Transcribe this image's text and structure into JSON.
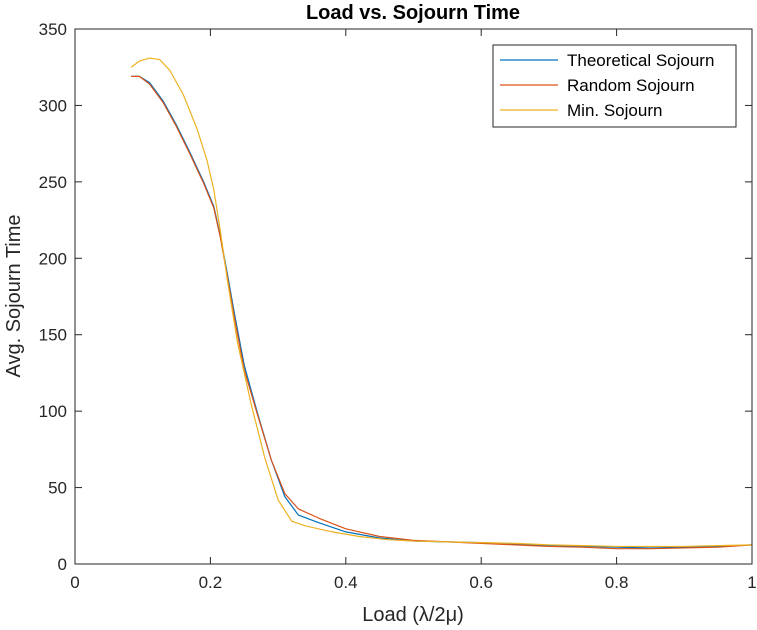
{
  "chart_data": {
    "type": "line",
    "title": "Load vs. Sojourn Time",
    "xlabel": "Load (λ/2μ)",
    "ylabel": "Avg. Sojourn Time",
    "xlim": [
      0,
      1
    ],
    "ylim": [
      0,
      350
    ],
    "xticks": [
      0,
      0.2,
      0.4,
      0.6,
      0.8,
      1
    ],
    "xtick_labels": [
      "0",
      "0.2",
      "0.4",
      "0.6",
      "0.8",
      "1"
    ],
    "yticks": [
      0,
      50,
      100,
      150,
      200,
      250,
      300,
      350
    ],
    "ytick_labels": [
      "0",
      "50",
      "100",
      "150",
      "200",
      "250",
      "300",
      "350"
    ],
    "grid": false,
    "legend_position": "top-right",
    "series": [
      {
        "name": "Theoretical Sojourn",
        "color": "#0072BD",
        "x": [
          0.083,
          0.095,
          0.11,
          0.13,
          0.15,
          0.17,
          0.19,
          0.205,
          0.215,
          0.225,
          0.235,
          0.25,
          0.27,
          0.29,
          0.31,
          0.33,
          0.36,
          0.4,
          0.45,
          0.5,
          0.55,
          0.6,
          0.65,
          0.7,
          0.75,
          0.8,
          0.85,
          0.9,
          0.95,
          1.0
        ],
        "y": [
          319,
          319,
          315,
          303,
          287,
          269,
          250,
          234,
          214,
          190,
          165,
          130,
          98,
          68,
          44,
          32,
          27,
          21,
          17,
          15,
          14.5,
          14,
          13,
          12,
          11.5,
          11,
          10.5,
          11,
          11.5,
          12.5
        ]
      },
      {
        "name": "Random Sojourn",
        "color": "#D95319",
        "x": [
          0.083,
          0.095,
          0.11,
          0.13,
          0.15,
          0.17,
          0.19,
          0.205,
          0.215,
          0.225,
          0.235,
          0.25,
          0.27,
          0.29,
          0.31,
          0.33,
          0.36,
          0.4,
          0.45,
          0.5,
          0.55,
          0.6,
          0.65,
          0.7,
          0.75,
          0.8,
          0.85,
          0.9,
          0.95,
          1.0
        ],
        "y": [
          319,
          319,
          314,
          302,
          286,
          268,
          249,
          233,
          213,
          188,
          162,
          127,
          97,
          68,
          46,
          36,
          30,
          23,
          18,
          15.5,
          14.5,
          13.5,
          12.5,
          11.5,
          11,
          10,
          10,
          10.5,
          11,
          12.5
        ]
      },
      {
        "name": "Min. Sojourn",
        "color": "#EDB120",
        "x": [
          0.083,
          0.095,
          0.11,
          0.125,
          0.14,
          0.16,
          0.18,
          0.195,
          0.205,
          0.215,
          0.225,
          0.24,
          0.26,
          0.28,
          0.3,
          0.32,
          0.34,
          0.38,
          0.42,
          0.46,
          0.5,
          0.55,
          0.6,
          0.65,
          0.7,
          0.75,
          0.8,
          0.85,
          0.9,
          0.95,
          1.0
        ],
        "y": [
          325,
          329,
          331,
          330,
          323,
          307,
          285,
          264,
          245,
          217,
          186,
          145,
          105,
          70,
          42,
          28,
          25,
          21,
          18,
          16,
          15,
          14.5,
          14,
          13.5,
          12.5,
          12,
          11.5,
          11.5,
          11.5,
          12,
          12.5
        ]
      }
    ]
  }
}
